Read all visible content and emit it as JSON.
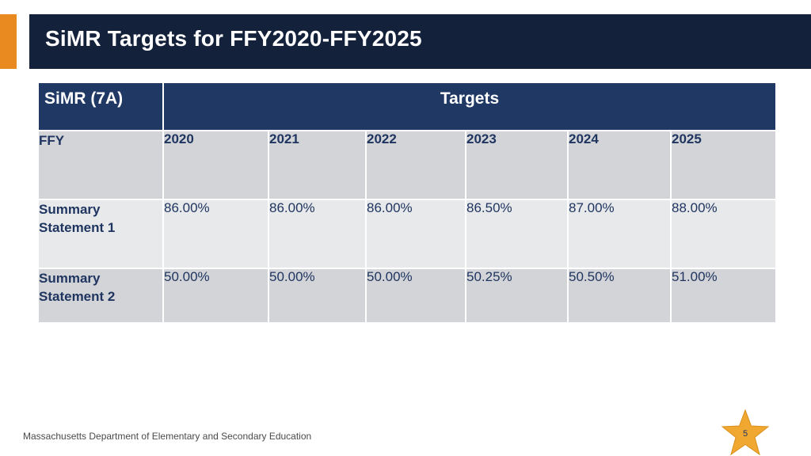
{
  "slide": {
    "title": "SiMR Targets for FFY2020-FFY2025",
    "footer": "Massachusetts Department of Elementary and Secondary Education",
    "page_number": "5"
  },
  "table": {
    "header_left": "SiMR (7A)",
    "header_span": "Targets",
    "ffy_label": "FFY",
    "years": [
      "2020",
      "2021",
      "2022",
      "2023",
      "2024",
      "2025"
    ],
    "rows": [
      {
        "label_line1": "Summary",
        "label_line2": "Statement 1",
        "values": [
          "86.00%",
          "86.00%",
          "86.00%",
          "86.50%",
          "87.00%",
          "88.00%"
        ]
      },
      {
        "label_line1": "Summary",
        "label_line2": "Statement 2",
        "values": [
          "50.00%",
          "50.00%",
          "50.00%",
          "50.25%",
          "50.50%",
          "51.00%"
        ]
      }
    ]
  },
  "colors": {
    "accent": "#e88a1f",
    "title_bar": "#13213b",
    "table_header": "#203864",
    "row_dark": "#d3d4d8",
    "row_light": "#e8e9eb",
    "star": "#f0a830"
  },
  "icons": {
    "page_badge": "star-icon"
  }
}
